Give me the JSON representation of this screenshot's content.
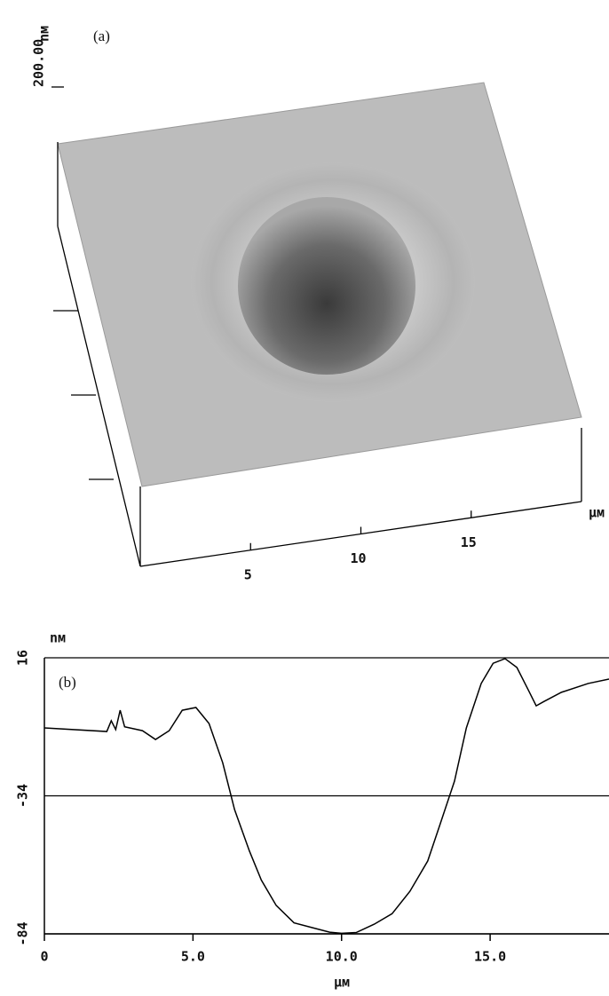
{
  "chart_data": [
    {
      "type": "surface3d",
      "label": "(a)",
      "z_unit": "nм",
      "zlim": [
        0,
        200
      ],
      "zticks": [
        {
          "value": 200,
          "label": "200.00"
        }
      ],
      "x_unit": "μм",
      "xlim": [
        0,
        20
      ],
      "xticks": [
        5,
        10,
        15
      ]
    },
    {
      "type": "line",
      "label": "(b)",
      "y_unit": "nм",
      "x_unit": "μм",
      "color": "#000000",
      "grid": true,
      "xlim": [
        0,
        19
      ],
      "xticks": [
        0,
        {
          "value": 5,
          "label": "5.0"
        },
        {
          "value": 10,
          "label": "10.0"
        },
        {
          "value": 15,
          "label": "15.0"
        }
      ],
      "ylim": [
        -84,
        16
      ],
      "yticks": [
        16,
        -34,
        -84
      ],
      "x": [
        0,
        2.1,
        2.25,
        2.4,
        2.55,
        2.7,
        3.3,
        3.74,
        4.2,
        4.64,
        5.1,
        5.54,
        6,
        6.4,
        6.9,
        7.3,
        7.8,
        8.4,
        9,
        9.6,
        10,
        10.5,
        11.1,
        11.7,
        12.3,
        12.9,
        13.3,
        13.8,
        14.2,
        14.7,
        15.1,
        15.5,
        15.9,
        16.3,
        16.55,
        16.8,
        17.4,
        18.3,
        19
      ],
      "values": [
        -9.4,
        -10.7,
        -6.8,
        -10,
        -3,
        -9,
        -10.4,
        -13.6,
        -10.4,
        -3,
        -2,
        -7.8,
        -22,
        -39,
        -54,
        -64.5,
        -73.7,
        -80,
        -81.7,
        -83.4,
        -83.8,
        -83.5,
        -80.5,
        -76.7,
        -68.6,
        -57.6,
        -44.8,
        -28.7,
        -9.4,
        6.7,
        14,
        15.7,
        12.5,
        4,
        -1.4,
        0.1,
        3.5,
        6.7,
        8.3
      ]
    }
  ]
}
